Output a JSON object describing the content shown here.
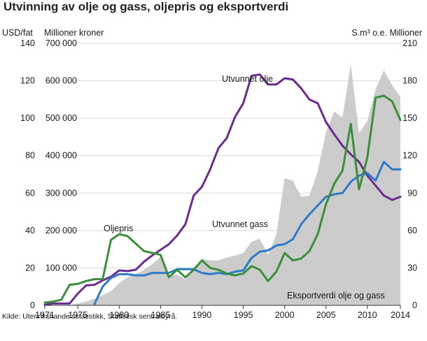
{
  "chart_data": {
    "type": "line",
    "title": "Utvinning av olje og gass, oljepris og eksportverdi",
    "source": "Kilde: Utenrikshandelsstatistikk, Statistisk sentralbyrå.",
    "left_axis_headers": [
      "USD/fat",
      "Millioner kroner"
    ],
    "right_axis_header": "S.m³ o.e. Millioner",
    "x_tick_labels": [
      "1971",
      "1975",
      "1980",
      "1985",
      "1990",
      "1995",
      "2000",
      "2005",
      "2010",
      "2014"
    ],
    "y_left_usd_ticks": [
      "0",
      "20",
      "40",
      "60",
      "80",
      "100",
      "120",
      "140"
    ],
    "y_left_nok_ticks": [
      "100 000",
      "200 000",
      "300 000",
      "400 000",
      "500 000",
      "600 000",
      "700 000"
    ],
    "y_right_ticks": [
      "0",
      "30",
      "60",
      "90",
      "120",
      "150",
      "180",
      "210"
    ],
    "xlim": [
      1971,
      2014
    ],
    "ylim_usd": [
      0,
      140
    ],
    "ylim_nok": [
      0,
      700000
    ],
    "ylim_sm3": [
      0,
      210
    ],
    "x": [
      1971,
      1972,
      1973,
      1974,
      1975,
      1976,
      1977,
      1978,
      1979,
      1980,
      1981,
      1982,
      1983,
      1984,
      1985,
      1986,
      1987,
      1988,
      1989,
      1990,
      1991,
      1992,
      1993,
      1994,
      1995,
      1996,
      1997,
      1998,
      1999,
      2000,
      2001,
      2002,
      2003,
      2004,
      2005,
      2006,
      2007,
      2008,
      2009,
      2010,
      2011,
      2012,
      2013,
      2014
    ],
    "series": [
      {
        "name": "Eksportverdi olje og gass",
        "axis": "Millioner kroner",
        "kind": "area",
        "color": "#cccccc",
        "values": [
          0,
          0,
          0,
          1000,
          5000,
          10000,
          18000,
          27000,
          38000,
          60000,
          75000,
          84000,
          95000,
          110000,
          130000,
          80000,
          82000,
          70000,
          100000,
          125000,
          120000,
          120000,
          128000,
          133000,
          140000,
          170000,
          178000,
          135000,
          190000,
          340000,
          333000,
          290000,
          293000,
          358000,
          463000,
          518000,
          502000,
          645000,
          460000,
          492000,
          577000,
          628000,
          588000,
          557000
        ]
      },
      {
        "name": "Utvunnet olje",
        "axis": "S.m³ o.e. Millioner",
        "kind": "line",
        "color": "#6b2c91",
        "values": [
          0.5,
          1.5,
          1.5,
          1.5,
          9.5,
          16,
          16.5,
          20,
          23,
          28,
          27.5,
          28.5,
          35,
          40,
          44.5,
          49,
          56,
          65,
          88,
          95,
          109,
          126,
          134,
          151,
          162,
          184,
          185,
          177,
          177,
          182,
          181,
          174,
          165,
          162,
          147,
          137,
          128,
          121,
          115,
          104,
          96,
          88,
          84.5,
          87
        ]
      },
      {
        "name": "Utvunnet gass",
        "axis": "S.m³ o.e. Millioner",
        "kind": "line",
        "color": "#2d7ac9",
        "values": [
          null,
          null,
          null,
          null,
          null,
          null,
          1,
          15,
          22,
          25,
          25,
          24,
          24,
          26,
          26,
          26,
          29,
          29,
          29,
          26,
          25,
          26,
          25,
          27,
          28,
          38,
          43,
          44,
          48,
          49,
          53,
          65,
          73,
          80,
          87,
          89,
          90,
          99,
          104,
          106,
          100,
          115,
          109,
          109
        ]
      },
      {
        "name": "Oljepris",
        "axis": "USD/fat",
        "kind": "line",
        "color": "#3a8f3a",
        "values": [
          1.5,
          2,
          3,
          11,
          11.5,
          13,
          14,
          14,
          35,
          38,
          37,
          33,
          29,
          28,
          27,
          15,
          19,
          15,
          19,
          24,
          20,
          19,
          17,
          16,
          17,
          21,
          19,
          13,
          18,
          28,
          24,
          25,
          29,
          38,
          54,
          65,
          72,
          97,
          62,
          79,
          111,
          112,
          109,
          99
        ]
      }
    ],
    "annotations": {
      "olje": "Utvunnet olje",
      "gass": "Utvunnet gass",
      "pris": "Oljepris",
      "eksport": "Eksportverdi olje og gass"
    }
  }
}
